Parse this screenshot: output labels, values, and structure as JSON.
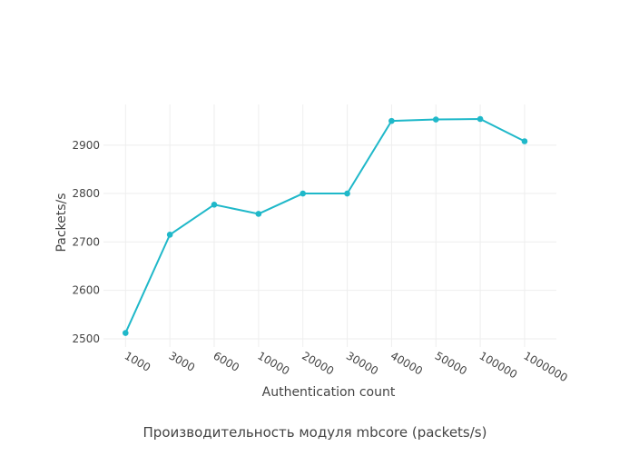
{
  "chart_data": {
    "type": "line",
    "title": "Производительность модуля mbcore (packets/s)",
    "xlabel": "Authentication count",
    "ylabel": "Packets/s",
    "categories": [
      "1000",
      "3000",
      "6000",
      "10000",
      "20000",
      "30000",
      "40000",
      "50000",
      "100000",
      "1000000"
    ],
    "series": [
      {
        "name": "Packets/s",
        "values": [
          2512,
          2715,
          2777,
          2758,
          2800,
          2800,
          2950,
          2953,
          2954,
          2908
        ]
      }
    ],
    "yticks": [
      2500,
      2600,
      2700,
      2800,
      2900
    ],
    "ylim": [
      2483,
      2984
    ],
    "grid": true,
    "legend": "none",
    "color": "#1fb8c9"
  }
}
